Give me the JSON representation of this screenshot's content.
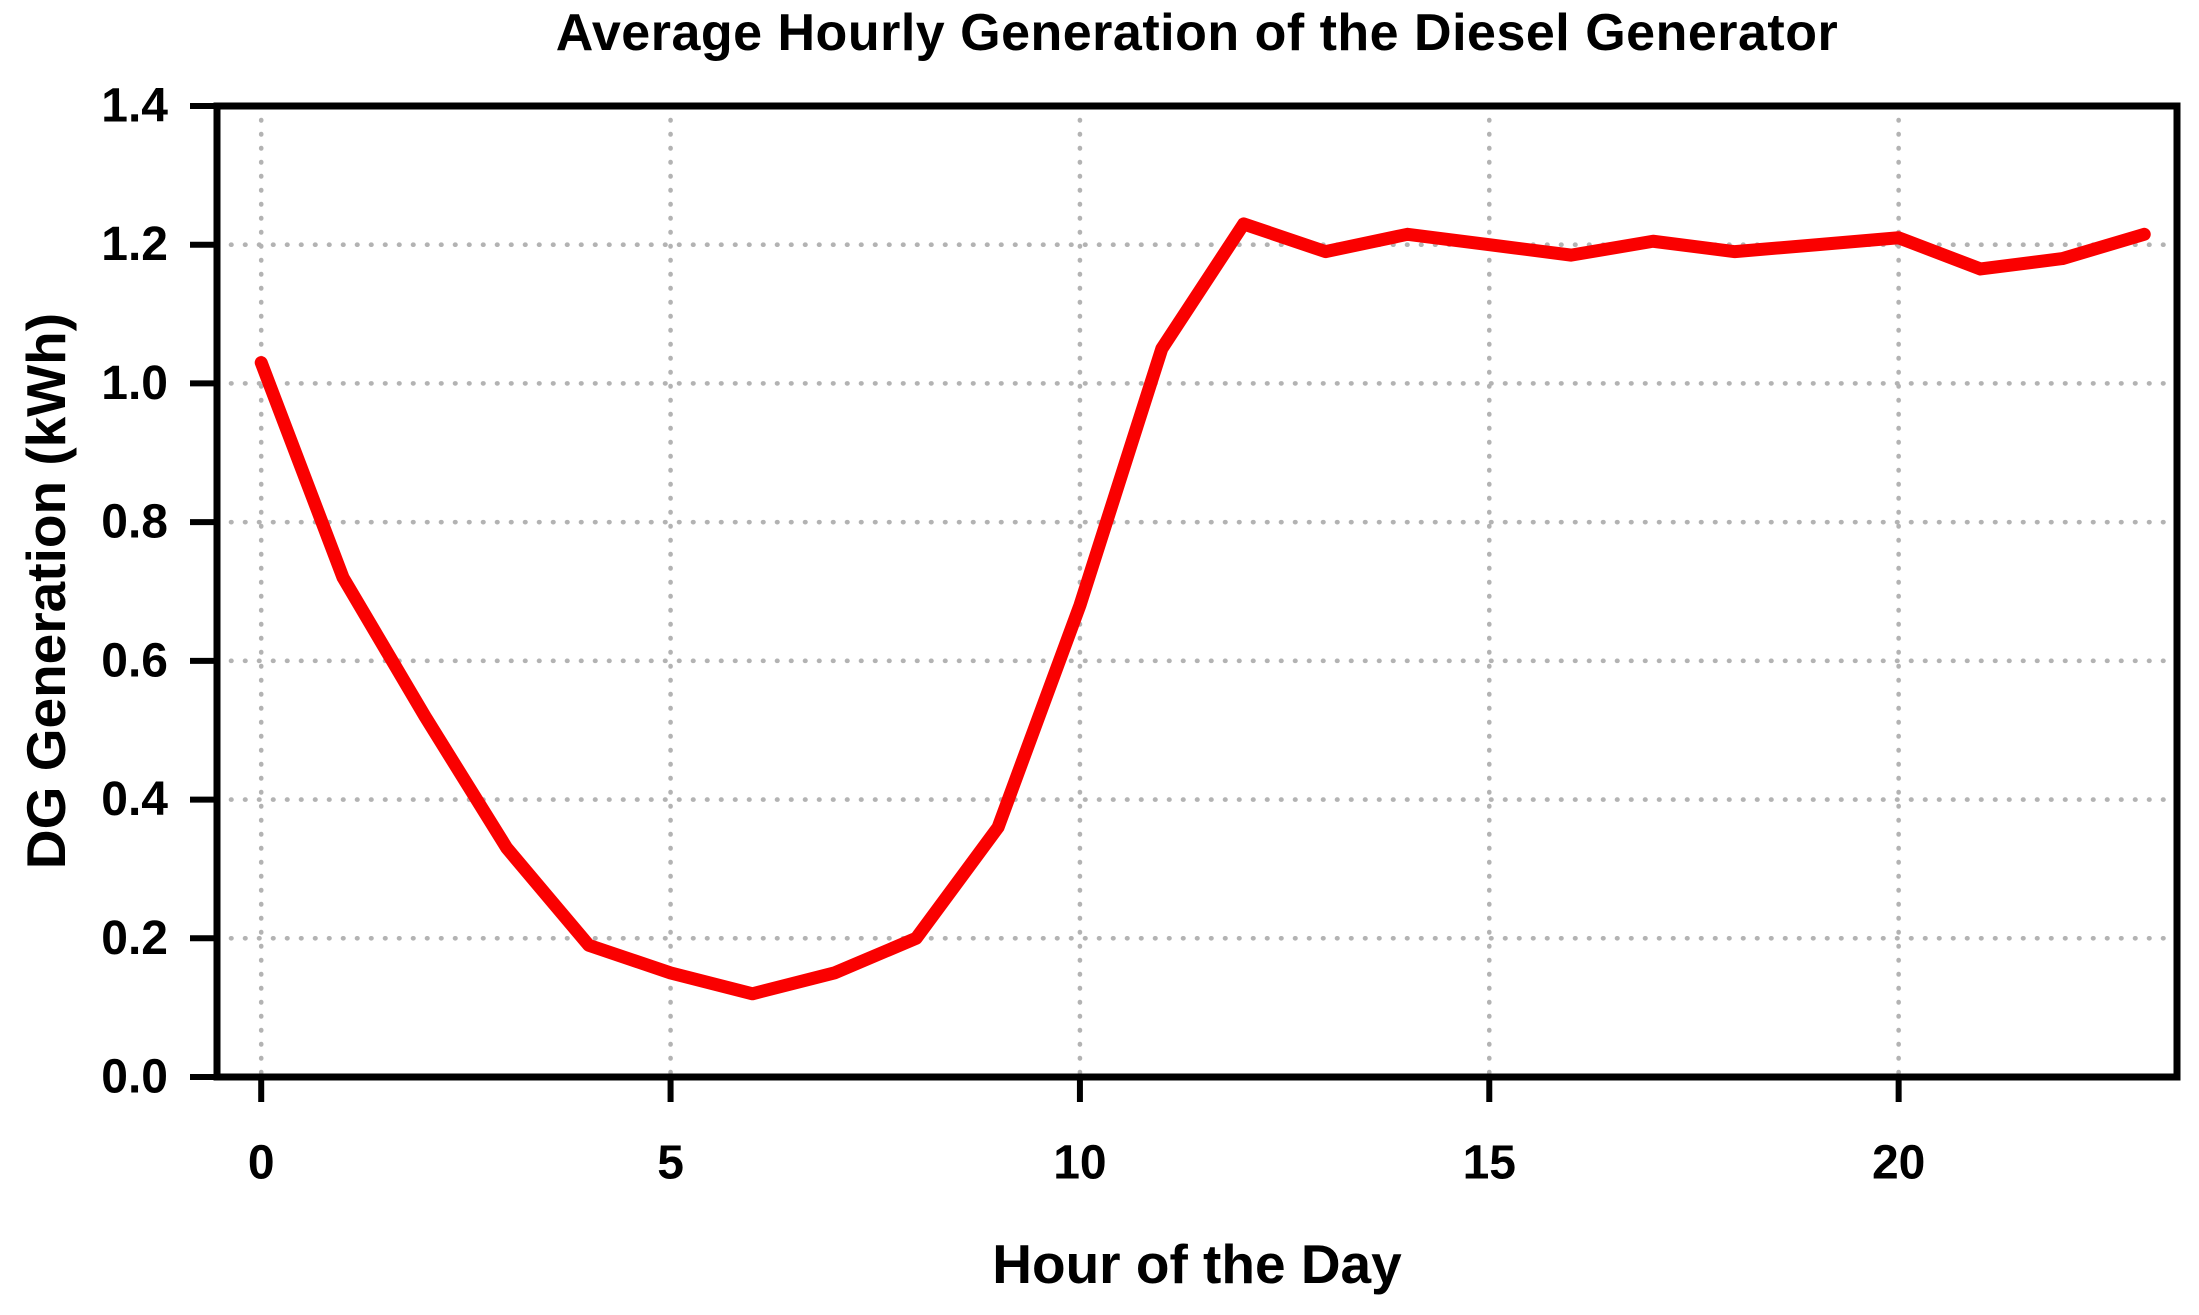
{
  "chart_data": {
    "type": "line",
    "title": "Average Hourly Generation of the Diesel Generator",
    "xlabel": "Hour of the Day",
    "ylabel": "DG Generation (kWh)",
    "x": [
      0,
      1,
      2,
      3,
      4,
      5,
      6,
      7,
      8,
      9,
      10,
      11,
      12,
      13,
      14,
      15,
      16,
      17,
      18,
      19,
      20,
      21,
      22,
      23
    ],
    "series": [
      {
        "name": "DG Generation",
        "color": "#fa0000",
        "values": [
          1.03,
          0.72,
          0.52,
          0.33,
          0.19,
          0.15,
          0.12,
          0.15,
          0.2,
          0.36,
          0.68,
          1.05,
          1.23,
          1.19,
          1.215,
          1.2,
          1.185,
          1.205,
          1.19,
          1.2,
          1.21,
          1.165,
          1.18,
          1.215
        ]
      }
    ],
    "xlim": [
      -0.54,
      23.4
    ],
    "ylim": [
      0,
      1.4
    ],
    "xticks": [
      0,
      5,
      10,
      15,
      20
    ],
    "xtick_labels": [
      "0",
      "5",
      "10",
      "15",
      "20"
    ],
    "yticks": [
      0.0,
      0.2,
      0.4,
      0.6,
      0.8,
      1.0,
      1.2,
      1.4
    ],
    "ytick_labels": [
      "0.0",
      "0.2",
      "0.4",
      "0.6",
      "0.8",
      "1.0",
      "1.2",
      "1.4"
    ],
    "grid": true,
    "grid_color": "#b3b3b3",
    "frame_color": "#000000",
    "legend_position": "none"
  }
}
